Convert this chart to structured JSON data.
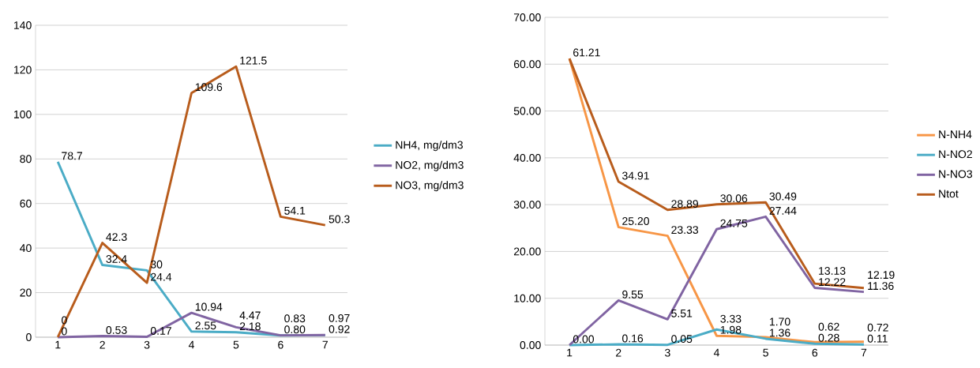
{
  "chart_data": [
    {
      "type": "line",
      "categories": [
        "1",
        "2",
        "3",
        "4",
        "5",
        "6",
        "7"
      ],
      "ylim": [
        0,
        140
      ],
      "yticks": [
        0,
        20,
        40,
        60,
        80,
        100,
        120,
        140
      ],
      "grid": "y",
      "legend": "right",
      "series": [
        {
          "name": "NH4, mg/dm3",
          "color": "#4bacc6",
          "values": [
            78.7,
            32.4,
            30,
            2.55,
            2.18,
            0.8,
            0.92
          ],
          "value_labels": [
            "78.7",
            "32.4",
            "30",
            "2.55",
            "2.18",
            "0.80",
            "0.92"
          ]
        },
        {
          "name": "NO2, mg/dm3",
          "color": "#8064a2",
          "values": [
            0,
            0.53,
            0.17,
            10.94,
            4.47,
            0.83,
            0.97
          ],
          "value_labels": [
            "0",
            "0.53",
            "0.17",
            "10.94",
            "4.47",
            "0.83",
            "0.97"
          ]
        },
        {
          "name": "NO3, mg/dm3",
          "color": "#b85c1c",
          "values": [
            0,
            42.3,
            24.4,
            109.6,
            121.5,
            54.1,
            50.3
          ],
          "value_labels": [
            "0",
            "42.3",
            "24.4",
            "109.6",
            "121.5",
            "54.1",
            "50.3"
          ]
        }
      ]
    },
    {
      "type": "line",
      "categories": [
        "1",
        "2",
        "3",
        "4",
        "5",
        "6",
        "7"
      ],
      "ylim": [
        0,
        70
      ],
      "yticks": [
        {
          "value": 0,
          "label": "0.00"
        },
        {
          "value": 10,
          "label": "10.00"
        },
        {
          "value": 20,
          "label": "20.00"
        },
        {
          "value": 30,
          "label": "30.00"
        },
        {
          "value": 40,
          "label": "40.00"
        },
        {
          "value": 50,
          "label": "50.00"
        },
        {
          "value": 60,
          "label": "60.00"
        },
        {
          "value": 70,
          "label": "70.00"
        }
      ],
      "grid": "y",
      "legend": "right",
      "series": [
        {
          "name": "N-NH4",
          "color": "#f79646",
          "values": [
            61.2,
            25.2,
            23.33,
            1.98,
            1.7,
            0.62,
            0.72
          ],
          "value_labels": [
            null,
            "25.20",
            "23.33",
            "1.98",
            "1.70",
            "0.62",
            "0.72"
          ]
        },
        {
          "name": "N-NO2",
          "color": "#4bacc6",
          "values": [
            0,
            0.16,
            0.05,
            3.33,
            1.36,
            0.28,
            0.11
          ],
          "value_labels": [
            "0.00",
            "0.16",
            "0.05",
            "3.33",
            "1.36",
            "0.28",
            "0.11"
          ]
        },
        {
          "name": "N-NO3",
          "color": "#8064a2",
          "values": [
            0,
            9.55,
            5.51,
            24.75,
            27.44,
            12.22,
            11.36
          ],
          "value_labels": [
            null,
            "9.55",
            "5.51",
            "24.75",
            "27.44",
            "12.22",
            "11.36"
          ]
        },
        {
          "name": "Ntot",
          "color": "#b85c1c",
          "values": [
            61.21,
            34.91,
            28.89,
            30.06,
            30.49,
            13.13,
            12.19
          ],
          "value_labels": [
            "61.21",
            "34.91",
            "28.89",
            "30.06",
            "30.49",
            "13.13",
            "12.19"
          ]
        }
      ]
    }
  ]
}
